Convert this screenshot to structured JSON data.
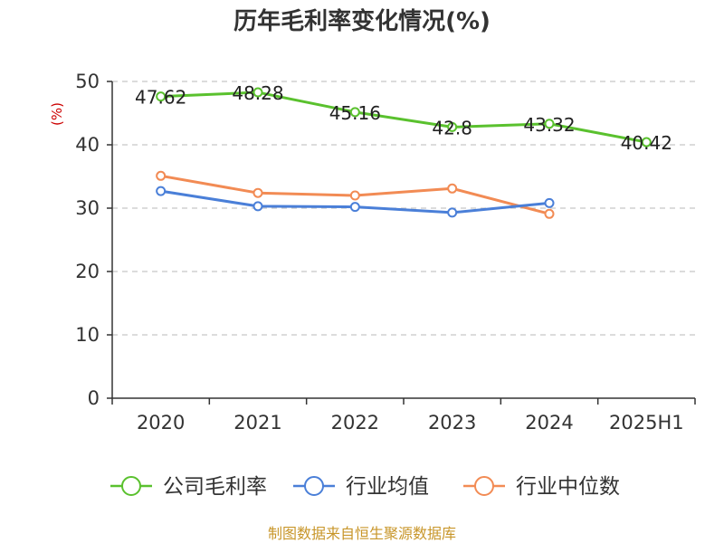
{
  "chart_data": {
    "type": "line",
    "title": "历年毛利率变化情况(%)",
    "ylabel": "(%)",
    "xlabel": "",
    "categories": [
      "2020",
      "2021",
      "2022",
      "2023",
      "2024",
      "2025H1"
    ],
    "ylim": [
      0,
      50
    ],
    "yticks": [
      0,
      10,
      20,
      30,
      40,
      50
    ],
    "grid": true,
    "legend_position": "bottom",
    "series": [
      {
        "name": "公司毛利率",
        "color": "#5ac12e",
        "values": [
          47.62,
          48.28,
          45.16,
          42.8,
          43.32,
          40.42
        ],
        "show_labels": true
      },
      {
        "name": "行业均值",
        "color": "#4a7fd8",
        "values": [
          32.7,
          30.3,
          30.2,
          29.3,
          30.8,
          null
        ],
        "show_labels": false
      },
      {
        "name": "行业中位数",
        "color": "#f28b54",
        "values": [
          35.1,
          32.4,
          32.0,
          33.1,
          29.1,
          null
        ],
        "show_labels": false
      }
    ]
  },
  "colors": {
    "ylabel": "#cc0000",
    "source": "#c8962a",
    "axis": "#333333",
    "grid": "#c8c8c8"
  },
  "source": "制图数据来自恒生聚源数据库"
}
